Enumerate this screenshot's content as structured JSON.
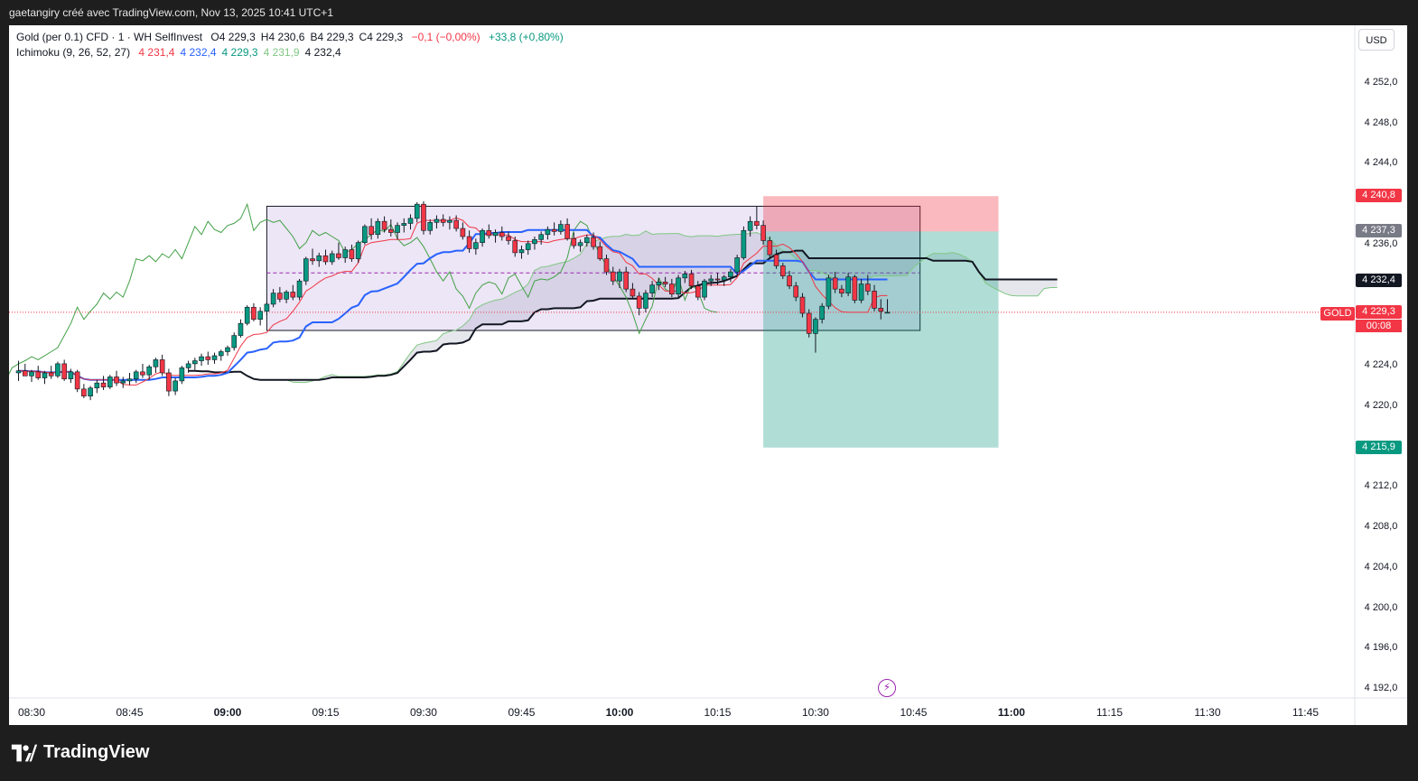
{
  "header": {
    "attribution": "gaetangiry créé avec TradingView.com, Nov 13, 2025 10:41 UTC+1"
  },
  "legend": {
    "symbol": "Gold (per 0.1) CFD · 1 · WH SelfInvest",
    "ohlc": [
      {
        "k": "O",
        "v": "4 229,3"
      },
      {
        "k": "H",
        "v": "4 230,6"
      },
      {
        "k": "B",
        "v": "4 229,3"
      },
      {
        "k": "C",
        "v": "4 229,3"
      }
    ],
    "change": "−0,1 (−0,00%)",
    "change_extra": "+33,8 (+0,80%)",
    "indicator": "Ichimoku (9, 26, 52, 27)",
    "indicator_values": [
      "4 231,4",
      "4 232,4",
      "4 229,3",
      "4 231,9",
      "4 232,4"
    ],
    "indicator_colors": [
      "#f23645",
      "#2962ff",
      "#089981",
      "#81c784",
      "#131722"
    ]
  },
  "currency_button": "USD",
  "price_axis": [
    {
      "label": "4 252,0",
      "value": 4252
    },
    {
      "label": "4 248,0",
      "value": 4248
    },
    {
      "label": "4 244,0",
      "value": 4244
    },
    {
      "label": "4 236,0",
      "value": 4236
    },
    {
      "label": "4 224,0",
      "value": 4224
    },
    {
      "label": "4 220,0",
      "value": 4220
    },
    {
      "label": "4 212,0",
      "value": 4212
    },
    {
      "label": "4 208,0",
      "value": 4208
    },
    {
      "label": "4 204,0",
      "value": 4204
    },
    {
      "label": "4 200,0",
      "value": 4200
    },
    {
      "label": "4 196,0",
      "value": 4196
    },
    {
      "label": "4 192,0",
      "value": 4192
    }
  ],
  "price_tags": {
    "stop": {
      "label": "4 240,8",
      "value": 4240.8,
      "color": "#f23645"
    },
    "entry": {
      "label": "4 237,3",
      "value": 4237.3,
      "color": "#787b86"
    },
    "kijun": {
      "label": "4 232,4",
      "value": 4232.4,
      "color": "#131722"
    },
    "last": {
      "label": "4 229,3",
      "value": 4229.3,
      "color": "#f23645"
    },
    "target": {
      "label": "4 215,9",
      "value": 4215.9,
      "color": "#089981"
    }
  },
  "symbol_tag": "GOLD",
  "countdown": "00:08",
  "time_axis": [
    {
      "label": "08:30",
      "bold": false
    },
    {
      "label": "08:45",
      "bold": false
    },
    {
      "label": "09:00",
      "bold": true
    },
    {
      "label": "09:15",
      "bold": false
    },
    {
      "label": "09:30",
      "bold": false
    },
    {
      "label": "09:45",
      "bold": false
    },
    {
      "label": "10:00",
      "bold": true
    },
    {
      "label": "10:15",
      "bold": false
    },
    {
      "label": "10:30",
      "bold": false
    },
    {
      "label": "10:45",
      "bold": false
    },
    {
      "label": "11:00",
      "bold": true
    },
    {
      "label": "11:15",
      "bold": false
    },
    {
      "label": "11:30",
      "bold": false
    },
    {
      "label": "11:45",
      "bold": false
    }
  ],
  "footer": {
    "brand": "TradingView"
  },
  "chart_data": {
    "type": "candlestick",
    "timeframe_minutes": 1,
    "ylim": [
      4190,
      4256
    ],
    "xlim": [
      "08:28",
      "11:52"
    ],
    "candles": [
      [
        "08:28",
        4223.3,
        4224.5,
        4222.5,
        4223.5
      ],
      [
        "08:29",
        4223.5,
        4224.2,
        4223.0,
        4223.0
      ],
      [
        "08:30",
        4223.0,
        4223.6,
        4222.4,
        4223.4
      ],
      [
        "08:31",
        4223.4,
        4224.0,
        4222.6,
        4222.8
      ],
      [
        "08:32",
        4222.8,
        4223.5,
        4222.2,
        4223.3
      ],
      [
        "08:33",
        4223.3,
        4224.0,
        4222.7,
        4223.0
      ],
      [
        "08:34",
        4223.0,
        4224.4,
        4222.8,
        4224.2
      ],
      [
        "08:35",
        4224.2,
        4224.6,
        4222.5,
        4222.7
      ],
      [
        "08:36",
        4222.7,
        4223.7,
        4222.3,
        4223.4
      ],
      [
        "08:37",
        4223.4,
        4223.6,
        4221.4,
        4221.7
      ],
      [
        "08:38",
        4221.7,
        4222.2,
        4220.8,
        4221.0
      ],
      [
        "08:39",
        4221.0,
        4222.0,
        4220.6,
        4221.8
      ],
      [
        "08:40",
        4221.8,
        4222.6,
        4221.3,
        4222.3
      ],
      [
        "08:41",
        4222.3,
        4223.0,
        4221.6,
        4221.9
      ],
      [
        "08:42",
        4221.9,
        4223.1,
        4221.7,
        4222.9
      ],
      [
        "08:43",
        4222.9,
        4223.5,
        4222.0,
        4222.3
      ],
      [
        "08:44",
        4222.3,
        4222.9,
        4221.8,
        4222.5
      ],
      [
        "08:45",
        4222.5,
        4223.3,
        4222.1,
        4222.7
      ],
      [
        "08:46",
        4222.7,
        4223.6,
        4222.3,
        4223.4
      ],
      [
        "08:47",
        4223.4,
        4224.2,
        4222.8,
        4223.1
      ],
      [
        "08:48",
        4223.1,
        4224.1,
        4222.6,
        4223.9
      ],
      [
        "08:49",
        4223.9,
        4224.8,
        4223.3,
        4224.6
      ],
      [
        "08:50",
        4224.6,
        4225.1,
        4223.0,
        4223.3
      ],
      [
        "08:51",
        4223.3,
        4223.7,
        4221.0,
        4221.5
      ],
      [
        "08:52",
        4221.5,
        4222.8,
        4221.1,
        4222.5
      ],
      [
        "08:53",
        4222.5,
        4224.0,
        4222.2,
        4223.8
      ],
      [
        "08:54",
        4223.8,
        4224.5,
        4223.3,
        4224.2
      ],
      [
        "08:55",
        4224.2,
        4224.8,
        4223.6,
        4224.5
      ],
      [
        "08:56",
        4224.5,
        4225.2,
        4224.0,
        4224.9
      ],
      [
        "08:57",
        4224.9,
        4225.4,
        4224.1,
        4224.6
      ],
      [
        "08:58",
        4224.6,
        4225.3,
        4224.2,
        4225.0
      ],
      [
        "08:59",
        4225.0,
        4225.6,
        4224.5,
        4225.4
      ],
      [
        "09:00",
        4225.4,
        4226.0,
        4225.0,
        4225.8
      ],
      [
        "09:01",
        4225.8,
        4227.3,
        4225.5,
        4227.0
      ],
      [
        "09:02",
        4227.0,
        4228.6,
        4226.8,
        4228.2
      ],
      [
        "09:03",
        4228.2,
        4230.0,
        4228.0,
        4229.8
      ],
      [
        "09:04",
        4229.8,
        4230.2,
        4228.4,
        4228.6
      ],
      [
        "09:05",
        4228.6,
        4229.8,
        4228.0,
        4229.4
      ],
      [
        "09:06",
        4229.4,
        4230.4,
        4229.0,
        4230.1
      ],
      [
        "09:07",
        4230.1,
        4231.6,
        4229.8,
        4231.2
      ],
      [
        "09:08",
        4231.2,
        4231.8,
        4230.3,
        4230.6
      ],
      [
        "09:09",
        4230.6,
        4231.5,
        4230.2,
        4231.3
      ],
      [
        "09:10",
        4231.3,
        4232.0,
        4230.5,
        4230.8
      ],
      [
        "09:11",
        4230.8,
        4232.6,
        4230.5,
        4232.4
      ],
      [
        "09:12",
        4232.4,
        4234.8,
        4232.0,
        4234.6
      ],
      [
        "09:13",
        4234.6,
        4235.6,
        4234.0,
        4234.4
      ],
      [
        "09:14",
        4234.4,
        4235.2,
        4233.8,
        4234.9
      ],
      [
        "09:15",
        4234.9,
        4235.5,
        4234.0,
        4234.3
      ],
      [
        "09:16",
        4234.3,
        4235.4,
        4234.0,
        4235.1
      ],
      [
        "09:17",
        4235.1,
        4236.2,
        4234.5,
        4234.7
      ],
      [
        "09:18",
        4234.7,
        4235.8,
        4234.2,
        4235.5
      ],
      [
        "09:19",
        4235.5,
        4236.0,
        4234.3,
        4234.6
      ],
      [
        "09:20",
        4234.6,
        4236.4,
        4234.2,
        4236.2
      ],
      [
        "09:21",
        4236.2,
        4238.0,
        4236.0,
        4237.8
      ],
      [
        "09:22",
        4237.8,
        4238.6,
        4236.5,
        4237.0
      ],
      [
        "09:23",
        4237.0,
        4238.6,
        4236.6,
        4238.3
      ],
      [
        "09:24",
        4238.3,
        4238.8,
        4237.2,
        4237.5
      ],
      [
        "09:25",
        4237.5,
        4238.5,
        4236.8,
        4237.2
      ],
      [
        "09:26",
        4237.2,
        4238.2,
        4236.5,
        4237.9
      ],
      [
        "09:27",
        4237.9,
        4238.6,
        4237.2,
        4238.1
      ],
      [
        "09:28",
        4238.1,
        4239.0,
        4237.5,
        4238.6
      ],
      [
        "09:29",
        4238.6,
        4240.2,
        4238.2,
        4240.0
      ],
      [
        "09:30",
        4240.0,
        4240.3,
        4237.0,
        4237.4
      ],
      [
        "09:31",
        4237.4,
        4238.5,
        4237.0,
        4238.2
      ],
      [
        "09:32",
        4238.2,
        4238.9,
        4237.6,
        4238.5
      ],
      [
        "09:33",
        4238.5,
        4239.0,
        4237.8,
        4238.2
      ],
      [
        "09:34",
        4238.2,
        4238.8,
        4237.5,
        4238.4
      ],
      [
        "09:35",
        4238.4,
        4238.9,
        4237.3,
        4237.6
      ],
      [
        "09:36",
        4237.6,
        4238.2,
        4236.5,
        4236.8
      ],
      [
        "09:37",
        4236.8,
        4237.4,
        4235.2,
        4235.6
      ],
      [
        "09:38",
        4235.6,
        4236.6,
        4235.0,
        4236.2
      ],
      [
        "09:39",
        4236.2,
        4237.6,
        4235.8,
        4237.4
      ],
      [
        "09:40",
        4237.4,
        4238.0,
        4236.6,
        4236.9
      ],
      [
        "09:41",
        4236.9,
        4237.5,
        4236.2,
        4237.2
      ],
      [
        "09:42",
        4237.2,
        4237.8,
        4236.4,
        4236.8
      ],
      [
        "09:43",
        4236.8,
        4237.3,
        4236.0,
        4236.4
      ],
      [
        "09:44",
        4236.4,
        4236.8,
        4234.8,
        4235.2
      ],
      [
        "09:45",
        4235.2,
        4235.9,
        4234.6,
        4235.5
      ],
      [
        "09:46",
        4235.5,
        4236.4,
        4235.0,
        4236.1
      ],
      [
        "09:47",
        4236.1,
        4236.8,
        4235.5,
        4236.5
      ],
      [
        "09:48",
        4236.5,
        4237.3,
        4236.0,
        4237.0
      ],
      [
        "09:49",
        4237.0,
        4237.8,
        4236.5,
        4237.5
      ],
      [
        "09:50",
        4237.5,
        4238.2,
        4236.9,
        4237.3
      ],
      [
        "09:51",
        4237.3,
        4238.4,
        4237.0,
        4238.0
      ],
      [
        "09:52",
        4238.0,
        4238.6,
        4236.4,
        4236.6
      ],
      [
        "09:53",
        4236.6,
        4237.2,
        4235.6,
        4235.9
      ],
      [
        "09:54",
        4235.9,
        4236.5,
        4235.3,
        4236.2
      ],
      [
        "09:55",
        4236.2,
        4237.0,
        4235.8,
        4236.7
      ],
      [
        "09:56",
        4236.7,
        4237.2,
        4235.5,
        4235.8
      ],
      [
        "09:57",
        4235.8,
        4236.3,
        4234.4,
        4234.6
      ],
      [
        "09:58",
        4234.6,
        4235.0,
        4233.0,
        4233.3
      ],
      [
        "09:59",
        4233.3,
        4233.8,
        4232.0,
        4232.4
      ],
      [
        "10:00",
        4232.4,
        4233.6,
        4231.7,
        4233.3
      ],
      [
        "10:01",
        4233.3,
        4233.8,
        4231.3,
        4231.6
      ],
      [
        "10:02",
        4231.6,
        4232.2,
        4230.6,
        4230.9
      ],
      [
        "10:03",
        4230.9,
        4231.3,
        4229.0,
        4229.7
      ],
      [
        "10:04",
        4229.7,
        4231.5,
        4229.3,
        4231.2
      ],
      [
        "10:05",
        4231.2,
        4232.4,
        4230.8,
        4232.0
      ],
      [
        "10:06",
        4232.0,
        4232.7,
        4231.5,
        4232.3
      ],
      [
        "10:07",
        4232.3,
        4232.8,
        4231.8,
        4232.1
      ],
      [
        "10:08",
        4232.1,
        4232.6,
        4230.8,
        4231.1
      ],
      [
        "10:09",
        4231.1,
        4233.0,
        4230.8,
        4232.7
      ],
      [
        "10:10",
        4232.7,
        4233.4,
        4232.2,
        4233.1
      ],
      [
        "10:11",
        4233.1,
        4233.5,
        4231.6,
        4231.9
      ],
      [
        "10:12",
        4231.9,
        4232.4,
        4230.5,
        4230.8
      ],
      [
        "10:13",
        4230.8,
        4232.6,
        4230.5,
        4232.4
      ],
      [
        "10:14",
        4232.4,
        4233.0,
        4231.9,
        4232.6
      ],
      [
        "10:15",
        4232.6,
        4233.2,
        4232.0,
        4232.5
      ],
      [
        "10:16",
        4232.5,
        4233.0,
        4231.9,
        4232.8
      ],
      [
        "10:17",
        4232.8,
        4233.6,
        4232.3,
        4233.3
      ],
      [
        "10:18",
        4233.3,
        4235.0,
        4233.0,
        4234.7
      ],
      [
        "10:19",
        4234.7,
        4237.8,
        4234.5,
        4237.4
      ],
      [
        "10:20",
        4237.4,
        4238.8,
        4236.8,
        4238.3
      ],
      [
        "10:21",
        4238.3,
        4239.8,
        4237.5,
        4237.9
      ],
      [
        "10:22",
        4237.9,
        4238.4,
        4236.0,
        4236.4
      ],
      [
        "10:23",
        4236.4,
        4236.8,
        4234.6,
        4235.0
      ],
      [
        "10:24",
        4235.0,
        4235.5,
        4233.6,
        4233.9
      ],
      [
        "10:25",
        4233.9,
        4234.2,
        4232.6,
        4232.9
      ],
      [
        "10:26",
        4232.9,
        4233.4,
        4231.6,
        4231.9
      ],
      [
        "10:27",
        4231.9,
        4232.3,
        4230.4,
        4230.8
      ],
      [
        "10:28",
        4230.8,
        4231.2,
        4228.8,
        4229.2
      ],
      [
        "10:29",
        4229.2,
        4229.6,
        4226.8,
        4227.2
      ],
      [
        "10:30",
        4227.2,
        4228.8,
        4225.3,
        4228.6
      ],
      [
        "10:31",
        4228.6,
        4230.2,
        4228.2,
        4229.9
      ],
      [
        "10:32",
        4229.9,
        4233.0,
        4229.6,
        4232.7
      ],
      [
        "10:33",
        4232.7,
        4233.3,
        4231.2,
        4231.6
      ],
      [
        "10:34",
        4231.6,
        4232.0,
        4230.8,
        4231.2
      ],
      [
        "10:35",
        4231.2,
        4233.2,
        4230.9,
        4232.8
      ],
      [
        "10:36",
        4232.8,
        4233.0,
        4230.2,
        4230.5
      ],
      [
        "10:37",
        4230.5,
        4232.6,
        4230.2,
        4232.1
      ],
      [
        "10:38",
        4232.1,
        4233.0,
        4231.0,
        4231.4
      ],
      [
        "10:39",
        4231.4,
        4232.0,
        4229.4,
        4229.7
      ],
      [
        "10:40",
        4229.7,
        4230.6,
        4228.6,
        4229.4
      ],
      [
        "10:41",
        4229.3,
        4230.6,
        4229.3,
        4229.3
      ]
    ],
    "indicators": {
      "tenkan_color": "#f23645",
      "kijun_color": "#2962ff",
      "chikou_color": "#43a047",
      "senkou_a_color": "#81c784",
      "senkou_b_color": "#131722",
      "cloud_color": "#d1d4dc"
    },
    "range_box": {
      "from": "09:06",
      "to": "10:46",
      "top": 4239.8,
      "bottom": 4227.5,
      "mid": 4233.2
    },
    "short_position": {
      "from": "10:22",
      "to": "10:58",
      "stop": 4240.8,
      "entry": 4237.3,
      "target": 4215.9
    },
    "last_price_line": 4229.3
  }
}
